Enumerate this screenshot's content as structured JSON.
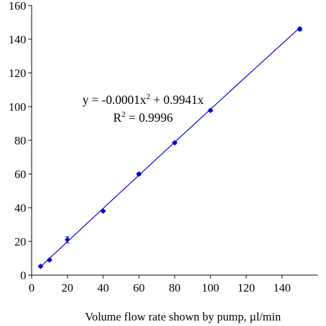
{
  "chart_data": {
    "type": "scatter",
    "title": "",
    "xlabel": "Volume flow rate shown by pump, µl/min",
    "ylabel": "",
    "xlim": [
      0,
      160
    ],
    "ylim": [
      0,
      160
    ],
    "x_ticks": [
      "0",
      "20",
      "40",
      "60",
      "80",
      "100",
      "120",
      "140"
    ],
    "y_ticks": [
      "0",
      "20",
      "40",
      "60",
      "80",
      "100",
      "120",
      "140",
      "160"
    ],
    "grid": false,
    "legend": "none",
    "series": [
      {
        "marker": "diamond",
        "color": "#0000cc",
        "points": [
          {
            "x": 5,
            "y": 5.2,
            "err": 0.6
          },
          {
            "x": 10,
            "y": 9.0,
            "err": 0.6
          },
          {
            "x": 20,
            "y": 21.0,
            "err": 1.8
          },
          {
            "x": 40,
            "y": 38.0,
            "err": 0.5
          },
          {
            "x": 60,
            "y": 60.0,
            "err": 0.8
          },
          {
            "x": 80,
            "y": 78.5,
            "err": 0.6
          },
          {
            "x": 100,
            "y": 97.7,
            "err": 0.6
          },
          {
            "x": 150,
            "y": 146.0,
            "err": 1.0
          }
        ]
      }
    ],
    "trendline": {
      "type": "polynomial",
      "a2": -0.0001,
      "a1": 0.9941,
      "x_range": [
        5,
        150
      ],
      "color": "#0000cc"
    },
    "annotations": {
      "equation_prefix": "y = -0.0001x",
      "equation_exp": "2",
      "equation_suffix": " + 0.9941x",
      "r2_prefix": "R",
      "r2_exp": "2",
      "r2_suffix": " = 0.9996"
    }
  }
}
